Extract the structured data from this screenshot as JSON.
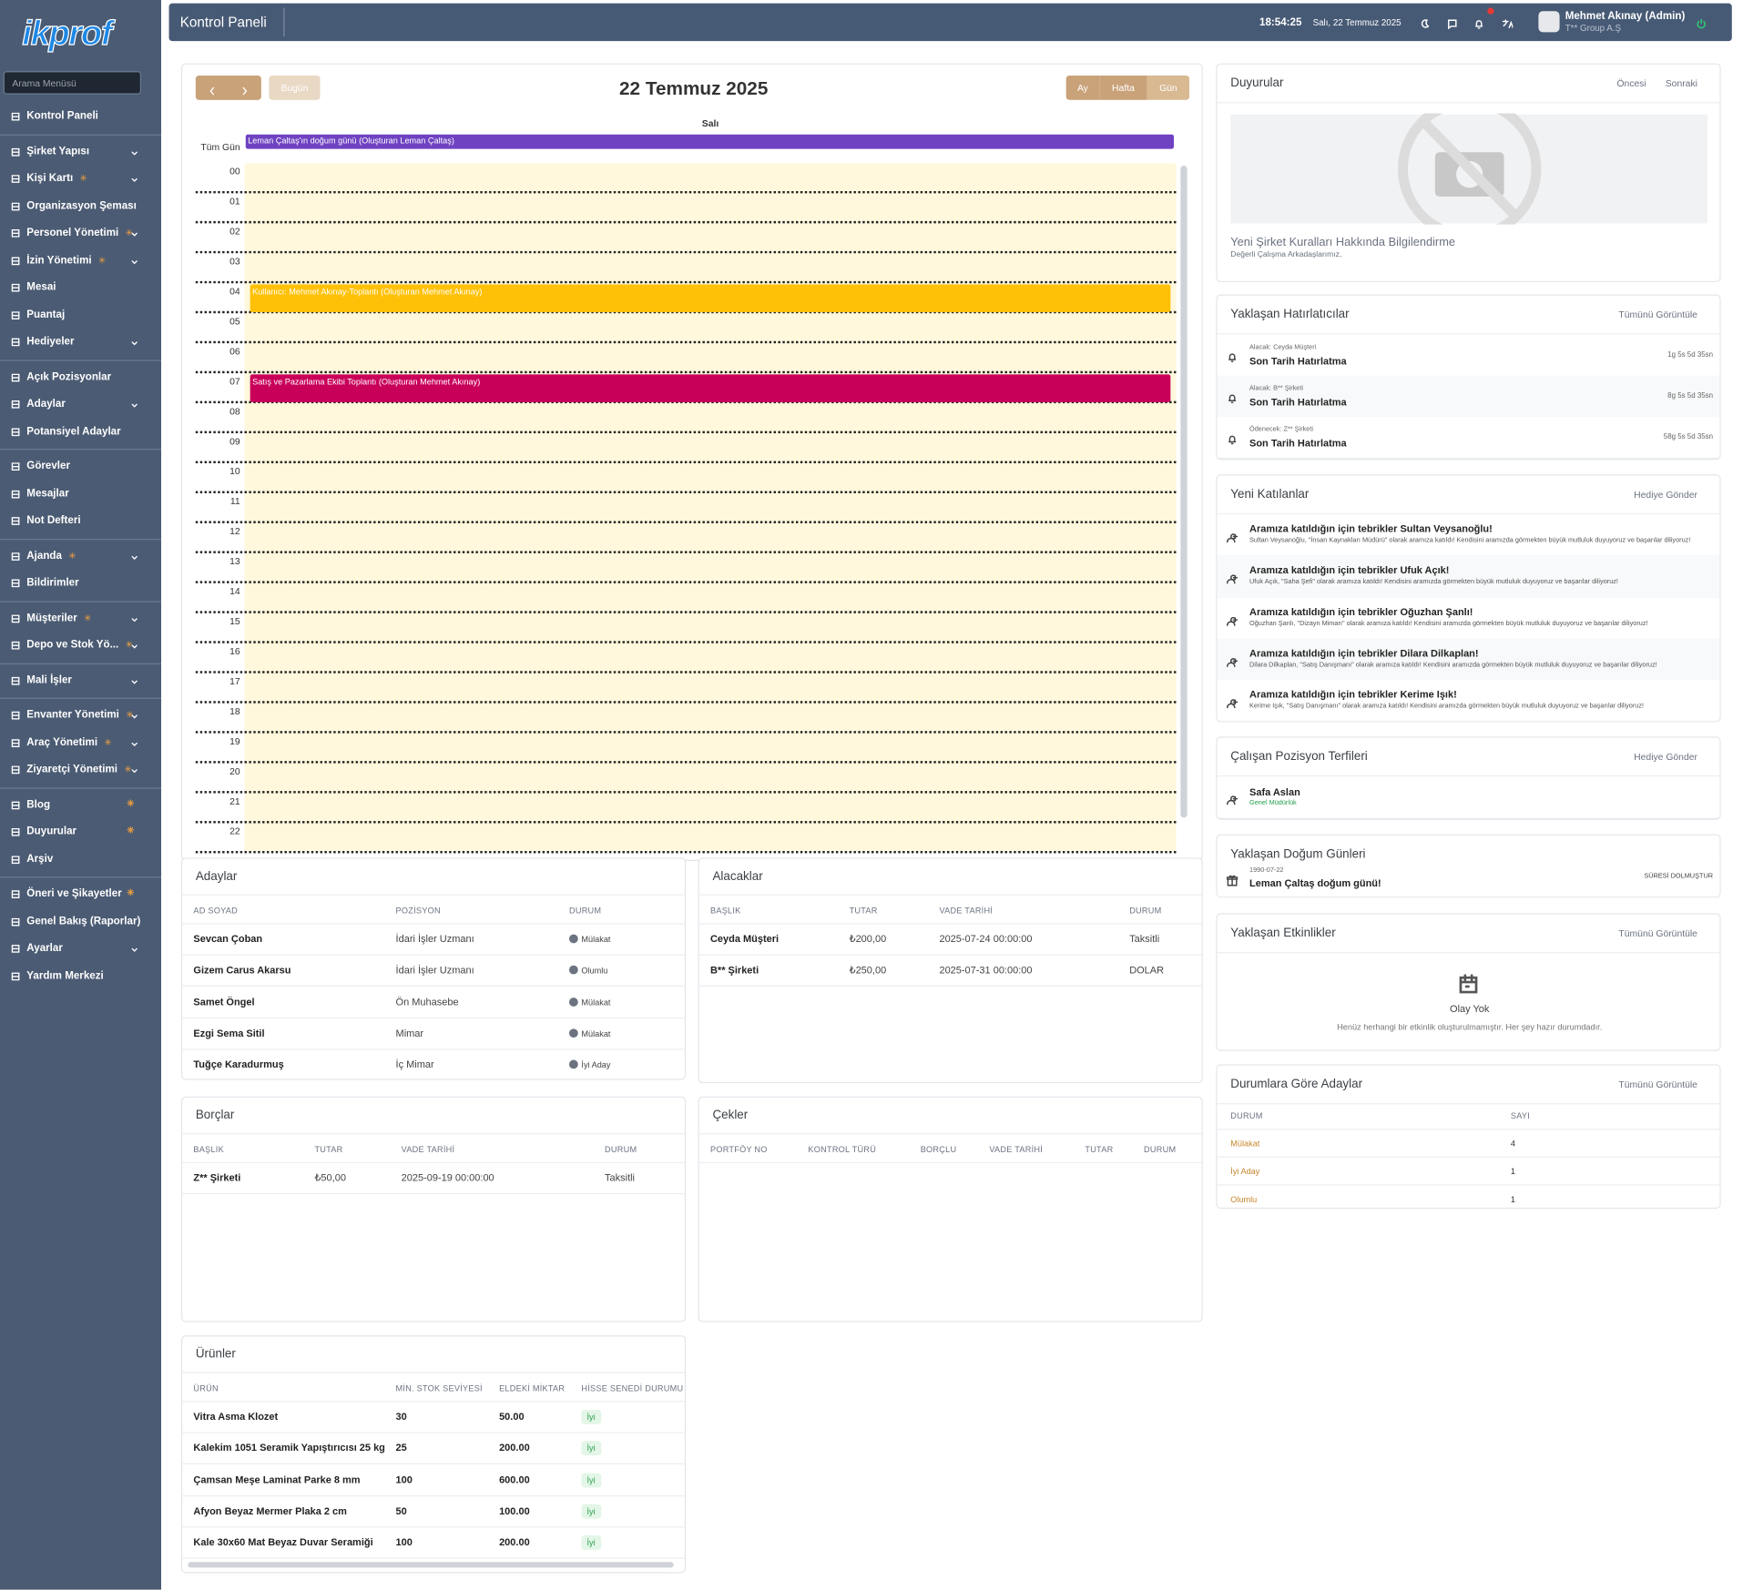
{
  "header": {
    "title": "Kontrol Paneli",
    "time": "18:54:25",
    "date": "Salı, 22 Temmuz 2025",
    "user_name": "Mehmet Akınay (Admin)",
    "user_company": "T** Group A.Ş"
  },
  "sidebar": {
    "logo": "ikprof",
    "search_placeholder": "Arama Menüsü",
    "groups": [
      [
        {
          "label": "Kontrol Paneli"
        }
      ],
      [
        {
          "label": "Şirket Yapısı",
          "chevron": true
        },
        {
          "label": "Kişi Kartı",
          "star": true,
          "chevron": true
        },
        {
          "label": "Organizasyon Şeması"
        },
        {
          "label": "Personel Yönetimi",
          "star": true,
          "chevron": true
        },
        {
          "label": "İzin Yönetimi",
          "star": true,
          "chevron": true
        },
        {
          "label": "Mesai"
        },
        {
          "label": "Puantaj"
        },
        {
          "label": "Hediyeler",
          "chevron": true
        }
      ],
      [
        {
          "label": "Açık Pozisyonlar"
        },
        {
          "label": "Adaylar",
          "chevron": true
        },
        {
          "label": "Potansiyel Adaylar"
        }
      ],
      [
        {
          "label": "Görevler"
        },
        {
          "label": "Mesajlar"
        },
        {
          "label": "Not Defteri"
        }
      ],
      [
        {
          "label": "Ajanda",
          "star": true,
          "chevron": true
        },
        {
          "label": "Bildirimler"
        }
      ],
      [
        {
          "label": "Müşteriler",
          "star": true,
          "chevron": true
        },
        {
          "label": "Depo ve Stok Yö...",
          "star": true,
          "chevron": true
        }
      ],
      [
        {
          "label": "Mali İşler",
          "chevron": true
        }
      ],
      [
        {
          "label": "Envanter Yönetimi",
          "star": true,
          "chevron": true
        },
        {
          "label": "Araç Yönetimi",
          "star": true,
          "chevron": true
        },
        {
          "label": "Ziyaretçi Yönetimi",
          "star": true,
          "chevron": true
        }
      ],
      [
        {
          "label": "Blog",
          "star": true
        },
        {
          "label": "Duyurular",
          "star": true
        },
        {
          "label": "Arşiv"
        }
      ],
      [
        {
          "label": "Öneri ve Şikayetler",
          "star": true
        },
        {
          "label": "Genel Bakış (Raporlar)"
        },
        {
          "label": "Ayarlar",
          "chevron": true
        },
        {
          "label": "Yardım Merkezi"
        }
      ]
    ]
  },
  "calendar": {
    "title": "22 Temmuz 2025",
    "today_button": "Bugün",
    "views": [
      "Ay",
      "Hafta",
      "Gün"
    ],
    "day": "Salı",
    "all_day_label": "Tüm Gün",
    "all_day_event": {
      "label": "Leman Çaltaş'ın doğum günü (Oluşturan Leman Çaltaş)",
      "color": "#6f42c1"
    },
    "hours": [
      "00",
      "01",
      "02",
      "03",
      "04",
      "05",
      "06",
      "07",
      "08",
      "09",
      "10",
      "11",
      "12",
      "13",
      "14",
      "15",
      "16",
      "17",
      "18",
      "19",
      "20",
      "21",
      "22"
    ],
    "events": [
      {
        "label": "Kullanıcı: Mehmet Akınay-Toplantı (Oluşturan Mehmet Akınay)",
        "color": "#ffc107"
      },
      {
        "label": "Satış ve Pazarlama Ekibi Toplantı (Oluşturan Mehmet Akınay)",
        "color": "#c9005a"
      }
    ]
  },
  "candidates": {
    "title": "Adaylar",
    "columns": [
      "AD SOYAD",
      "POZİSYON",
      "DURUM"
    ],
    "rows": [
      [
        "Sevcan Çoban",
        "İdari İşler Uzmanı",
        "Mülakat"
      ],
      [
        "Gizem Carus Akarsu",
        "İdari İşler Uzmanı",
        "Olumlu"
      ],
      [
        "Samet Öngel",
        "Ön Muhasebe",
        "Mülakat"
      ],
      [
        "Ezgi Sema Sitil",
        "Mimar",
        "Mülakat"
      ],
      [
        "Tuğçe Karadurmuş",
        "İç Mimar",
        "İyi Aday"
      ]
    ]
  },
  "receivables": {
    "title": "Alacaklar",
    "columns": [
      "BAŞLIK",
      "TUTAR",
      "VADE TARİHİ",
      "DURUM"
    ],
    "rows": [
      [
        "Ceyda Müşteri",
        "₺200,00",
        "2025-07-24 00:00:00",
        "Taksitli"
      ],
      [
        "B** Şirketi",
        "₺250,00",
        "2025-07-31 00:00:00",
        "DOLAR"
      ]
    ]
  },
  "debts": {
    "title": "Borçlar",
    "columns": [
      "BAŞLIK",
      "TUTAR",
      "VADE TARİHİ",
      "DURUM"
    ],
    "rows": [
      [
        "Z** Şirketi",
        "₺50,00",
        "2025-09-19 00:00:00",
        "Taksitli"
      ]
    ]
  },
  "cheques": {
    "title": "Çekler",
    "columns": [
      "PORTFÖY NO",
      "KONTROL TÜRÜ",
      "BORÇLU",
      "VADE TARİHİ",
      "TUTAR",
      "DURUM"
    ],
    "rows": []
  },
  "products": {
    "title": "Ürünler",
    "columns": [
      "ÜRÜN",
      "MİN. STOK SEVİYESİ",
      "ELDEKİ MİKTAR",
      "HİSSE SENEDİ DURUMU"
    ],
    "rows": [
      [
        "Vitra Asma Klozet",
        "30",
        "50.00",
        "İyi"
      ],
      [
        "Kalekim 1051 Seramik Yapıştırıcısı 25 kg",
        "25",
        "200.00",
        "İyi"
      ],
      [
        "Çamsan Meşe Laminat Parke 8 mm",
        "100",
        "600.00",
        "İyi"
      ],
      [
        "Afyon Beyaz Mermer Plaka 2 cm",
        "50",
        "100.00",
        "İyi"
      ],
      [
        "Kale 30x60 Mat Beyaz Duvar Seramiği",
        "100",
        "200.00",
        "İyi"
      ]
    ]
  },
  "announcements": {
    "title": "Duyurular",
    "prev": "Öncesi",
    "next": "Sonraki",
    "item_title": "Yeni Şirket Kuralları Hakkında Bilgilendirme",
    "item_text": "Değerli Çalışma Arkadaşlarımız,"
  },
  "reminders": {
    "title": "Yaklaşan Hatırlatıcılar",
    "action": "Tümünü Görüntüle",
    "items": [
      {
        "subtitle": "Alacak: Ceyda Müşteri",
        "title": "Son Tarih Hatırlatma",
        "time": "1g 5s 5d 35sn"
      },
      {
        "subtitle": "Alacak: B** Şirketi",
        "title": "Son Tarih Hatırlatma",
        "time": "8g 5s 5d 35sn"
      },
      {
        "subtitle": "Ödenecek: Z** Şirketi",
        "title": "Son Tarih Hatırlatma",
        "time": "58g 5s 5d 35sn"
      }
    ]
  },
  "new_joiners": {
    "title": "Yeni Katılanlar",
    "action": "Hediye Gönder",
    "items": [
      {
        "title": "Aramıza katıldığın için tebrikler Sultan Veysanoğlu!",
        "text": "Sultan Veysanoğlu, \"İnsan Kaynakları Müdürü\" olarak aramıza katıldı! Kendisini aramızda görmekten büyük mutluluk duyuyoruz ve başarılar diliyoruz!"
      },
      {
        "title": "Aramıza katıldığın için tebrikler Ufuk Açık!",
        "text": "Ufuk Açık, \"Saha Şefi\" olarak aramıza katıldı! Kendisini aramızda görmekten büyük mutluluk duyuyoruz ve başarılar diliyoruz!"
      },
      {
        "title": "Aramıza katıldığın için tebrikler Oğuzhan Şanlı!",
        "text": "Oğuzhan Şanlı, \"Dizayn Mimarı\" olarak aramıza katıldı! Kendisini aramızda görmekten büyük mutluluk duyuyoruz ve başarılar diliyoruz!"
      },
      {
        "title": "Aramıza katıldığın için tebrikler Dilara Dilkaplan!",
        "text": "Dilara Dilkaplan, \"Satış Danışmanı\" olarak aramıza katıldı! Kendisini aramızda görmekten büyük mutluluk duyuyoruz ve başarılar diliyoruz!"
      },
      {
        "title": "Aramıza katıldığın için tebrikler Kerime Işık!",
        "text": "Kerime Işık, \"Satış Danışmanı\" olarak aramıza katıldı! Kendisini aramızda görmekten büyük mutluluk duyuyoruz ve başarılar diliyoruz!"
      }
    ]
  },
  "promotions": {
    "title": "Çalışan Pozisyon Terfileri",
    "action": "Hediye Gönder",
    "items": [
      {
        "name": "Safa Aslan",
        "role": "Genel Müdürlük"
      }
    ]
  },
  "birthdays": {
    "title": "Yaklaşan Doğum Günleri",
    "items": [
      {
        "date": "1990-07-22",
        "title": "Leman Çaltaş doğum günü!",
        "status": "SÜRESİ DOLMUŞTUR"
      }
    ]
  },
  "events": {
    "title": "Yaklaşan Etkinlikler",
    "action": "Tümünü Görüntüle",
    "empty_title": "Olay Yok",
    "empty_text": "Henüz herhangi bir etkinlik oluşturulmamıştır. Her şey hazır durumdadır."
  },
  "candidates_by_status": {
    "title": "Durumlara Göre Adaylar",
    "action": "Tümünü Görüntüle",
    "columns": [
      "DURUM",
      "SAYI"
    ],
    "rows": [
      [
        "Mülakat",
        "4"
      ],
      [
        "İyi Aday",
        "1"
      ],
      [
        "Olumlu",
        "1"
      ]
    ]
  }
}
